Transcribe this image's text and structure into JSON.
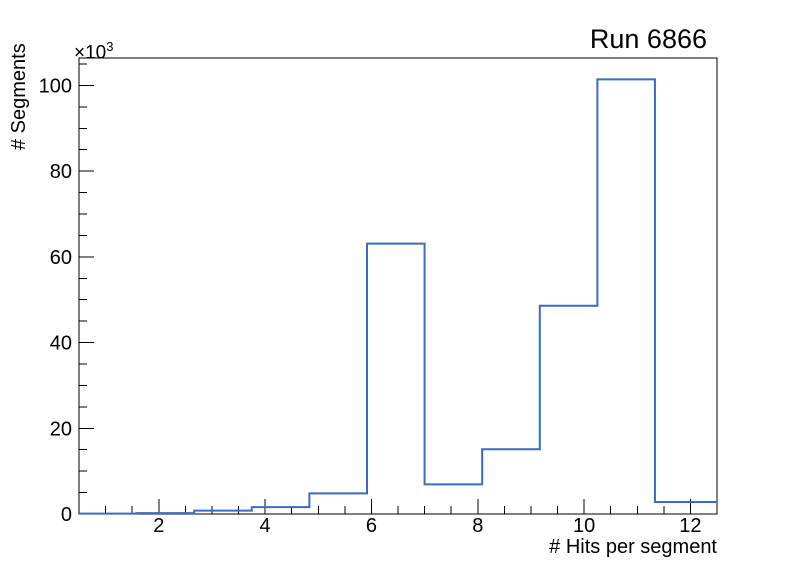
{
  "title": "Run 6866",
  "axes": {
    "x_label": "# Hits per segment",
    "y_label": "# Segments",
    "y_multiplier_base": "×10",
    "y_multiplier_exponent": "3"
  },
  "colors": {
    "histogram_line": "#3a6bc4",
    "axis": "#000000",
    "background": "#ffffff"
  },
  "chart_data": {
    "type": "bar",
    "style": "step-outline-histogram",
    "title": "Run 6866",
    "xlabel": "# Hits per segment",
    "ylabel": "# Segments",
    "y_scale_note": "y tick labels are thousands (×10³)",
    "bin_edges": [
      0.5,
      1.583,
      2.667,
      3.75,
      4.833,
      5.917,
      7.0,
      8.083,
      9.167,
      10.25,
      11.333,
      12.5
    ],
    "counts": [
      100,
      200,
      800,
      1600,
      4800,
      63100,
      6900,
      15100,
      48600,
      101400,
      2800
    ],
    "xlim": [
      0.5,
      12.5
    ],
    "ylim": [
      0,
      106400
    ],
    "x_major_ticks": [
      2,
      4,
      6,
      8,
      10,
      12
    ],
    "x_tick_labels": [
      "2",
      "4",
      "6",
      "8",
      "10",
      "12"
    ],
    "x_minor_tick_step": 0.5,
    "y_major_ticks": [
      0,
      20000,
      40000,
      60000,
      80000,
      100000
    ],
    "y_tick_labels": [
      "0",
      "20",
      "40",
      "60",
      "80",
      "100"
    ],
    "y_minor_tick_step": 5000,
    "grid": false,
    "legend_position": "none"
  }
}
